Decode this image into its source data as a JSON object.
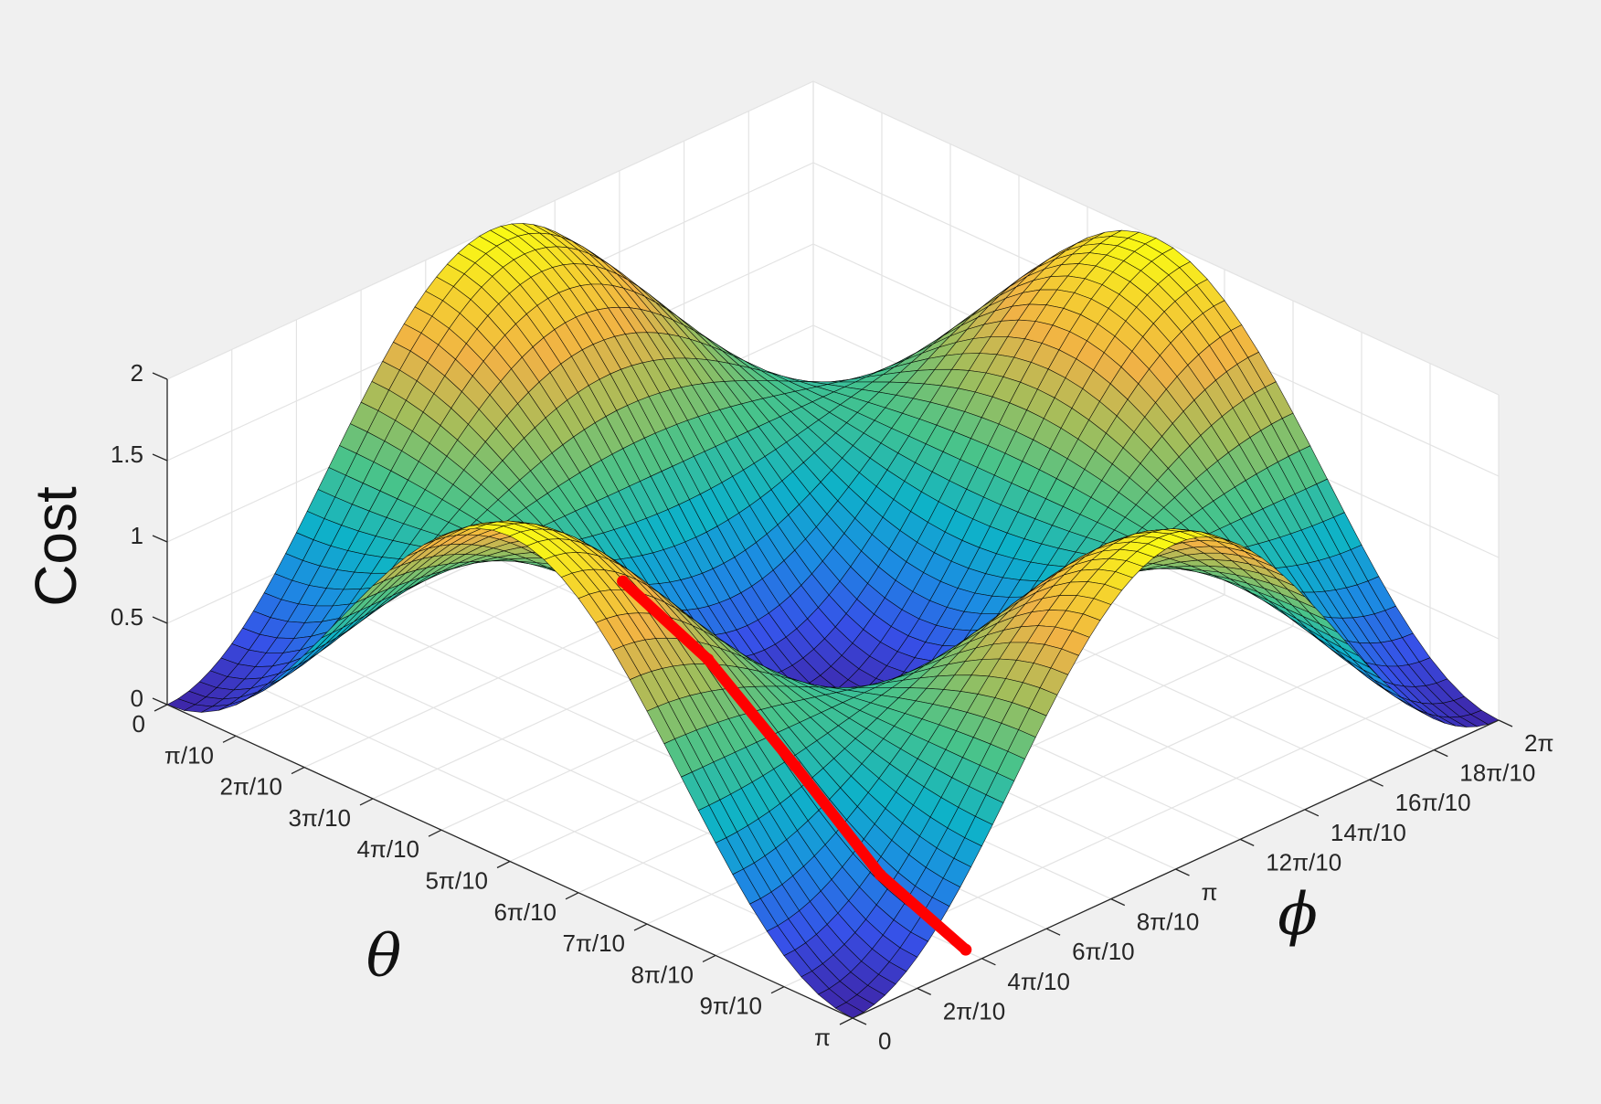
{
  "chart_data": {
    "type": "surface",
    "zlabel": "Cost",
    "xlabel": "θ",
    "ylabel": "ϕ",
    "zlim": [
      0,
      2
    ],
    "xlim": [
      0,
      3.14159
    ],
    "ylim": [
      0,
      6.28318
    ],
    "grid": true,
    "colormap": "parula",
    "z_ticks": [
      "0",
      "0.5",
      "1",
      "1.5",
      "2"
    ],
    "x_ticks": [
      "0",
      "π/10",
      "2π/10",
      "3π/10",
      "4π/10",
      "5π/10",
      "6π/10",
      "7π/10",
      "8π/10",
      "9π/10",
      "π"
    ],
    "y_ticks": [
      "0",
      "2π/10",
      "4π/10",
      "6π/10",
      "8π/10",
      "π",
      "12π/10",
      "14π/10",
      "16π/10",
      "18π/10",
      "2π"
    ],
    "surface": {
      "formula": "cost = 1 - cos(2*theta) * cos(phi)",
      "theta_samples": 41,
      "phi_samples": 61
    },
    "series": [
      {
        "color": "#ff0000",
        "points": [
          {
            "theta": 3.14159,
            "phi": 1.1,
            "cost": 0.1
          },
          {
            "theta": 2.75,
            "phi": 1.1,
            "cost": 0.32
          },
          {
            "theta": 2.36,
            "phi": 1.1,
            "cost": 0.75
          },
          {
            "theta": 1.96,
            "phi": 1.1,
            "cost": 1.16
          },
          {
            "theta": 1.57,
            "phi": 1.1,
            "cost": 1.4
          }
        ]
      }
    ]
  }
}
